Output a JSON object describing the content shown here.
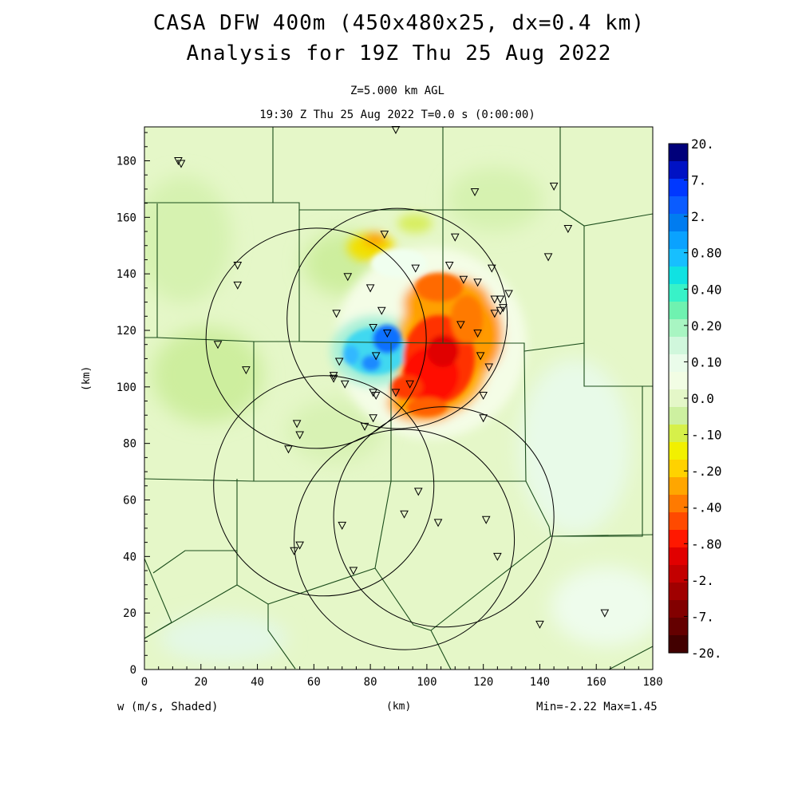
{
  "titles": {
    "line1": "CASA DFW 400m (450x480x25, dx=0.4 km)",
    "line2": "Analysis for 19Z Thu 25 Aug 2022",
    "level": "Z=5.000 km AGL",
    "time": "19:30 Z Thu 25 Aug 2022   T=0.0 s (0:00:00)"
  },
  "axes": {
    "x_label": "(km)",
    "y_label": "(km)",
    "x_range": [
      0,
      180
    ],
    "y_range": [
      0,
      192
    ],
    "x_ticks": [
      "0",
      "20",
      "40",
      "60",
      "80",
      "100",
      "120",
      "140",
      "160",
      "180"
    ],
    "y_ticks": [
      "0",
      "20",
      "40",
      "60",
      "80",
      "100",
      "120",
      "140",
      "160",
      "180"
    ]
  },
  "footer": {
    "variable": "w (m/s, Shaded)",
    "minmax": "Min=-2.22 Max=1.45"
  },
  "colorbar": {
    "labels": [
      "20.",
      "7.",
      "2.",
      "0.80",
      "0.40",
      "0.20",
      "0.10",
      "0.0",
      "-.10",
      "-.20",
      "-.40",
      "-.80",
      "-2.",
      "-7.",
      "-20."
    ],
    "colors": [
      "#00007a",
      "#0012c4",
      "#0038ff",
      "#0a5cff",
      "#007cf0",
      "#0aa2ff",
      "#17bfff",
      "#10e2e2",
      "#38f2c8",
      "#6ff2b0",
      "#a8f5c2",
      "#d0f7dc",
      "#eafcea",
      "#f2fde4",
      "#e4f7c8",
      "#cdf0a0",
      "#d6f04a",
      "#f2f000",
      "#ffd200",
      "#ffa600",
      "#ff7a00",
      "#ff4a00",
      "#ff1800",
      "#e10000",
      "#c30000",
      "#a00000",
      "#820000",
      "#640000",
      "#420000"
    ]
  },
  "radar_sites_km": [
    [
      60.8,
      117.2
    ],
    [
      89.5,
      124.2
    ],
    [
      63.5,
      65.0
    ],
    [
      92.0,
      46.0
    ],
    [
      106.0,
      54.0
    ]
  ],
  "radar_range_km": 39,
  "stations_km": [
    [
      89,
      191
    ],
    [
      12,
      180
    ],
    [
      13,
      179
    ],
    [
      117,
      169
    ],
    [
      145,
      171
    ],
    [
      150,
      156
    ],
    [
      85,
      154
    ],
    [
      110,
      153
    ],
    [
      143,
      146
    ],
    [
      33,
      143
    ],
    [
      33,
      136
    ],
    [
      72,
      139
    ],
    [
      108,
      143
    ],
    [
      96,
      142
    ],
    [
      123,
      142
    ],
    [
      80,
      135
    ],
    [
      113,
      138
    ],
    [
      118,
      137
    ],
    [
      129,
      133
    ],
    [
      124,
      131
    ],
    [
      126,
      131
    ],
    [
      84,
      127
    ],
    [
      68,
      126
    ],
    [
      127,
      128
    ],
    [
      126,
      127
    ],
    [
      124,
      126
    ],
    [
      81,
      121
    ],
    [
      112,
      122
    ],
    [
      118,
      119
    ],
    [
      86,
      119
    ],
    [
      26,
      115
    ],
    [
      119,
      111
    ],
    [
      122,
      107
    ],
    [
      82,
      111
    ],
    [
      69,
      109
    ],
    [
      36,
      106
    ],
    [
      67,
      104
    ],
    [
      67,
      103
    ],
    [
      71,
      101
    ],
    [
      94,
      101
    ],
    [
      81,
      98
    ],
    [
      82,
      97
    ],
    [
      89,
      98
    ],
    [
      120,
      97
    ],
    [
      81,
      89
    ],
    [
      120,
      89
    ],
    [
      78,
      86
    ],
    [
      54,
      87
    ],
    [
      55,
      83
    ],
    [
      51,
      78
    ],
    [
      97,
      63
    ],
    [
      92,
      55
    ],
    [
      121,
      53
    ],
    [
      104,
      52
    ],
    [
      70,
      51
    ],
    [
      55,
      44
    ],
    [
      53,
      42
    ],
    [
      125,
      40
    ],
    [
      74,
      35
    ],
    [
      140,
      16
    ],
    [
      163,
      20
    ]
  ]
}
